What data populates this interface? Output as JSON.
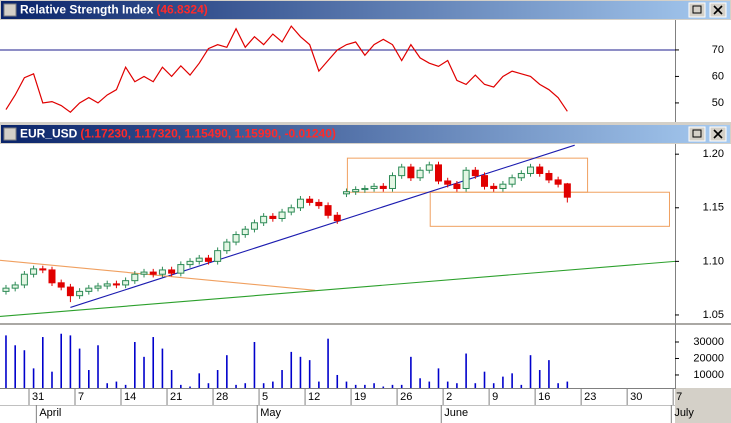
{
  "chart_data": [
    {
      "type": "line",
      "title": "Relative Strength Index",
      "title_value": "(46.8324)",
      "color": "#e00000",
      "values": [
        47.5,
        53,
        59.5,
        61,
        50,
        50.5,
        49,
        46.5,
        50,
        52,
        50,
        53,
        55,
        63.5,
        58,
        60,
        58,
        63.5,
        60,
        64,
        60.5,
        65,
        70.5,
        72,
        71,
        78,
        71,
        75,
        72,
        76,
        73,
        79,
        75,
        72,
        62,
        66,
        70,
        72,
        73,
        68,
        72,
        74,
        72,
        66,
        72,
        67,
        65,
        63.8,
        66,
        58.5,
        57,
        60.5,
        57,
        56,
        60,
        62,
        61,
        60,
        57,
        55,
        52,
        46.8324
      ],
      "ylim": [
        42.8,
        81.3
      ],
      "yticks": [
        50,
        60,
        70
      ],
      "reference_lines": [
        {
          "y": 70,
          "color": "#1c1c8c"
        }
      ]
    },
    {
      "type": "candlestick",
      "title": "EUR_USD",
      "title_value": "(1.17230, 1.17320, 1.15490, 1.15990, -0.01240)",
      "up_color": "#2e8b57",
      "down_color": "#e00000",
      "open": [
        1.072,
        1.075,
        1.078,
        1.088,
        1.093,
        1.092,
        1.08,
        1.076,
        1.068,
        1.072,
        1.075,
        1.077,
        1.079,
        1.078,
        1.082,
        1.088,
        1.09,
        1.088,
        1.092,
        1.089,
        1.097,
        1.1,
        1.103,
        1.1,
        1.11,
        1.118,
        1.125,
        1.13,
        1.136,
        1.142,
        1.14,
        1.146,
        1.15,
        1.158,
        1.155,
        1.152,
        1.143,
        1.163,
        1.165,
        1.167,
        1.168,
        1.17,
        1.168,
        1.18,
        1.188,
        1.178,
        1.185,
        1.19,
        1.175,
        1.172,
        1.168,
        1.185,
        1.18,
        1.17,
        1.168,
        1.172,
        1.178,
        1.182,
        1.188,
        1.182,
        1.176,
        1.1723
      ],
      "high": [
        1.078,
        1.081,
        1.091,
        1.096,
        1.096,
        1.095,
        1.083,
        1.079,
        1.075,
        1.078,
        1.08,
        1.082,
        1.082,
        1.085,
        1.091,
        1.093,
        1.093,
        1.095,
        1.095,
        1.1,
        1.103,
        1.106,
        1.106,
        1.113,
        1.121,
        1.128,
        1.133,
        1.139,
        1.145,
        1.145,
        1.149,
        1.153,
        1.161,
        1.161,
        1.158,
        1.155,
        1.146,
        1.168,
        1.17,
        1.171,
        1.173,
        1.173,
        1.183,
        1.191,
        1.191,
        1.188,
        1.193,
        1.193,
        1.178,
        1.175,
        1.188,
        1.188,
        1.183,
        1.173,
        1.175,
        1.181,
        1.185,
        1.191,
        1.191,
        1.185,
        1.179,
        1.1732
      ],
      "low": [
        1.069,
        1.072,
        1.075,
        1.085,
        1.089,
        1.077,
        1.073,
        1.062,
        1.065,
        1.069,
        1.072,
        1.074,
        1.075,
        1.075,
        1.079,
        1.085,
        1.085,
        1.085,
        1.086,
        1.086,
        1.094,
        1.097,
        1.097,
        1.097,
        1.107,
        1.115,
        1.122,
        1.127,
        1.133,
        1.137,
        1.137,
        1.143,
        1.147,
        1.152,
        1.149,
        1.14,
        1.135,
        1.16,
        1.162,
        1.164,
        1.165,
        1.165,
        1.165,
        1.177,
        1.175,
        1.175,
        1.182,
        1.172,
        1.169,
        1.165,
        1.165,
        1.177,
        1.167,
        1.165,
        1.165,
        1.169,
        1.175,
        1.179,
        1.179,
        1.173,
        1.169,
        1.1549
      ],
      "close": [
        1.075,
        1.078,
        1.088,
        1.093,
        1.092,
        1.08,
        1.076,
        1.068,
        1.072,
        1.075,
        1.077,
        1.079,
        1.078,
        1.082,
        1.088,
        1.09,
        1.088,
        1.092,
        1.089,
        1.097,
        1.1,
        1.103,
        1.1,
        1.11,
        1.118,
        1.125,
        1.13,
        1.136,
        1.142,
        1.14,
        1.146,
        1.15,
        1.158,
        1.155,
        1.152,
        1.143,
        1.138,
        1.165,
        1.167,
        1.168,
        1.17,
        1.168,
        1.18,
        1.188,
        1.178,
        1.185,
        1.19,
        1.175,
        1.172,
        1.168,
        1.185,
        1.18,
        1.17,
        1.168,
        1.172,
        1.178,
        1.182,
        1.188,
        1.182,
        1.176,
        1.172,
        1.1599
      ],
      "ylim": [
        1.0425,
        1.2095
      ],
      "yticks": [
        {
          "value": 1.2,
          "label": "1.20"
        },
        1.15,
        {
          "value": 1.1,
          "label": "1.10"
        },
        1.05
      ],
      "lines": [
        {
          "x": [
            7,
            61.8
          ],
          "y": [
            1.057,
            1.2084
          ],
          "color": "#1c1cb0"
        },
        {
          "x": [
            -0.65,
            33.6
          ],
          "y": [
            1.101,
            1.073
          ],
          "color": "#f0a060"
        },
        {
          "x": [
            -0.65,
            72.7
          ],
          "y": [
            1.0486,
            1.1
          ],
          "color": "#2ca02c"
        }
      ],
      "boxes": [
        {
          "x": [
            37.1,
            63.2
          ],
          "y": [
            1.1645,
            1.1963
          ],
          "color": "#f0a060"
        },
        {
          "x": [
            46.1,
            72.1
          ],
          "y": [
            1.1327,
            1.1645
          ],
          "color": "#f0a060"
        }
      ]
    },
    {
      "type": "bar",
      "color": "#0000cc",
      "values": [
        34000,
        28000,
        25000,
        14000,
        33000,
        12000,
        35000,
        34000,
        26000,
        13000,
        28000,
        5000,
        6000,
        4000,
        30000,
        21000,
        33000,
        26000,
        13000,
        4000,
        3000,
        11000,
        5000,
        13000,
        22000,
        4000,
        5000,
        30000,
        5000,
        6000,
        13000,
        24000,
        21000,
        19000,
        6000,
        32000,
        10000,
        6000,
        4000,
        4000,
        5000,
        3000,
        4000,
        4000,
        21000,
        8000,
        6000,
        14000,
        6000,
        5000,
        23000,
        5000,
        12000,
        5000,
        9000,
        11000,
        4000,
        22000,
        13000,
        19000,
        5000,
        6000
      ],
      "ylim": [
        2100,
        40300
      ],
      "yticks": [
        10000,
        20000,
        30000
      ]
    }
  ],
  "x_axis": {
    "xlim": [
      -0.65,
      72.7
    ],
    "xticks": [
      {
        "value": 2.5,
        "label": "31"
      },
      {
        "value": 7.5,
        "label": "7"
      },
      {
        "value": 12.5,
        "label": "14"
      },
      {
        "value": 17.5,
        "label": "21"
      },
      {
        "value": 22.5,
        "label": "28"
      },
      {
        "value": 27.5,
        "label": "5"
      },
      {
        "value": 32.5,
        "label": "12"
      },
      {
        "value": 37.5,
        "label": "19"
      },
      {
        "value": 42.5,
        "label": "26"
      },
      {
        "value": 47.5,
        "label": "2"
      },
      {
        "value": 52.5,
        "label": "9"
      },
      {
        "value": 57.5,
        "label": "16"
      },
      {
        "value": 62.5,
        "label": "23"
      },
      {
        "value": 67.5,
        "label": "30"
      },
      {
        "value": 72.5,
        "label": "7"
      }
    ],
    "months": [
      {
        "value": 3.3,
        "label": "April"
      },
      {
        "value": 27.3,
        "label": "May"
      },
      {
        "value": 47.3,
        "label": "June"
      },
      {
        "value": 72.3,
        "label": "July"
      }
    ]
  }
}
